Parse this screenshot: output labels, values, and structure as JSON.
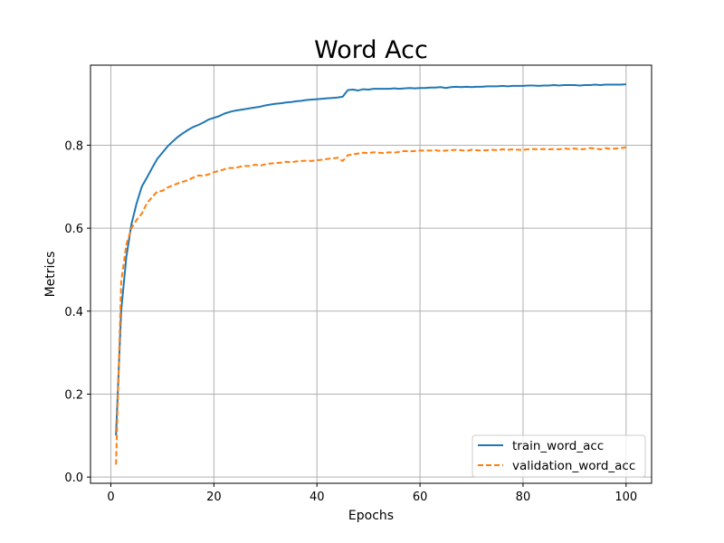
{
  "chart_data": {
    "type": "line",
    "title": "Word Acc",
    "xlabel": "Epochs",
    "ylabel": "Metrics",
    "xlim": [
      -3.95,
      104.95
    ],
    "ylim": [
      -0.015,
      0.993
    ],
    "xticks": [
      0,
      20,
      40,
      60,
      80,
      100
    ],
    "yticks": [
      0.0,
      0.2,
      0.4,
      0.6,
      0.8
    ],
    "xtick_labels": [
      "0",
      "20",
      "40",
      "60",
      "80",
      "100"
    ],
    "ytick_labels": [
      "0.0",
      "0.2",
      "0.4",
      "0.6",
      "0.8"
    ],
    "grid": true,
    "legend_position": "lower right",
    "x": [
      1,
      2,
      3,
      4,
      5,
      6,
      7,
      8,
      9,
      10,
      11,
      12,
      13,
      14,
      15,
      16,
      17,
      18,
      19,
      20,
      21,
      22,
      23,
      24,
      25,
      26,
      27,
      28,
      29,
      30,
      31,
      32,
      33,
      34,
      35,
      36,
      37,
      38,
      39,
      40,
      41,
      42,
      43,
      44,
      45,
      46,
      47,
      48,
      49,
      50,
      51,
      52,
      53,
      54,
      55,
      56,
      57,
      58,
      59,
      60,
      61,
      62,
      63,
      64,
      65,
      66,
      67,
      68,
      69,
      70,
      71,
      72,
      73,
      74,
      75,
      76,
      77,
      78,
      79,
      80,
      81,
      82,
      83,
      84,
      85,
      86,
      87,
      88,
      89,
      90,
      91,
      92,
      93,
      94,
      95,
      96,
      97,
      98,
      99,
      100
    ],
    "series": [
      {
        "name": "train_word_acc",
        "color": "#1f77b4",
        "style": "solid",
        "values": [
          0.1,
          0.4,
          0.53,
          0.61,
          0.66,
          0.7,
          0.722,
          0.745,
          0.767,
          0.782,
          0.797,
          0.809,
          0.82,
          0.829,
          0.837,
          0.844,
          0.849,
          0.855,
          0.862,
          0.866,
          0.87,
          0.876,
          0.88,
          0.883,
          0.885,
          0.887,
          0.889,
          0.891,
          0.893,
          0.896,
          0.898,
          0.9,
          0.901,
          0.903,
          0.904,
          0.906,
          0.907,
          0.909,
          0.91,
          0.911,
          0.912,
          0.913,
          0.914,
          0.915,
          0.917,
          0.933,
          0.934,
          0.932,
          0.935,
          0.934,
          0.936,
          0.936,
          0.936,
          0.936,
          0.937,
          0.936,
          0.937,
          0.938,
          0.937,
          0.938,
          0.938,
          0.939,
          0.939,
          0.94,
          0.938,
          0.94,
          0.941,
          0.94,
          0.941,
          0.94,
          0.941,
          0.941,
          0.942,
          0.942,
          0.942,
          0.943,
          0.942,
          0.943,
          0.943,
          0.943,
          0.944,
          0.944,
          0.943,
          0.944,
          0.944,
          0.945,
          0.944,
          0.945,
          0.945,
          0.945,
          0.944,
          0.945,
          0.945,
          0.946,
          0.945,
          0.946,
          0.946,
          0.946,
          0.946,
          0.947
        ]
      },
      {
        "name": "validation_word_acc",
        "color": "#ff7f0e",
        "style": "dashed",
        "values": [
          0.03,
          0.47,
          0.56,
          0.6,
          0.62,
          0.635,
          0.66,
          0.675,
          0.688,
          0.69,
          0.698,
          0.703,
          0.708,
          0.712,
          0.716,
          0.722,
          0.727,
          0.726,
          0.73,
          0.735,
          0.738,
          0.742,
          0.745,
          0.745,
          0.748,
          0.75,
          0.75,
          0.753,
          0.751,
          0.754,
          0.756,
          0.757,
          0.758,
          0.76,
          0.759,
          0.761,
          0.762,
          0.763,
          0.762,
          0.764,
          0.765,
          0.767,
          0.768,
          0.77,
          0.762,
          0.776,
          0.778,
          0.78,
          0.782,
          0.781,
          0.783,
          0.782,
          0.781,
          0.783,
          0.782,
          0.784,
          0.786,
          0.785,
          0.786,
          0.787,
          0.787,
          0.787,
          0.788,
          0.786,
          0.787,
          0.788,
          0.789,
          0.788,
          0.786,
          0.789,
          0.788,
          0.787,
          0.788,
          0.789,
          0.788,
          0.79,
          0.789,
          0.79,
          0.789,
          0.789,
          0.79,
          0.791,
          0.79,
          0.791,
          0.79,
          0.791,
          0.79,
          0.792,
          0.791,
          0.792,
          0.79,
          0.791,
          0.793,
          0.792,
          0.79,
          0.793,
          0.791,
          0.792,
          0.793,
          0.795
        ]
      }
    ]
  }
}
